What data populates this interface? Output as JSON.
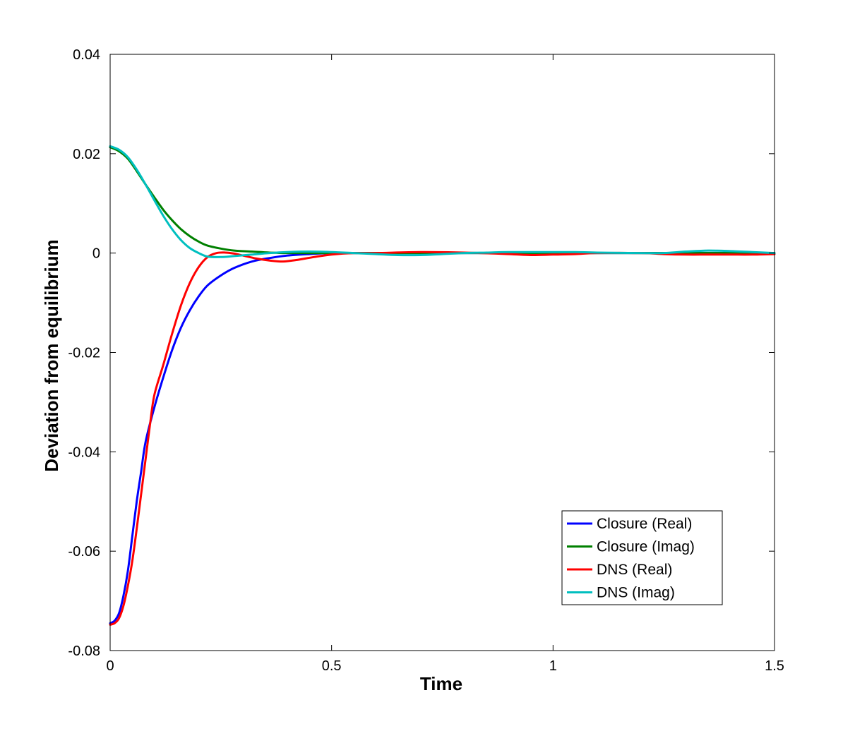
{
  "chart_data": {
    "type": "line",
    "title": "",
    "xlabel": "Time",
    "ylabel": "Deviation from equilibrium",
    "xlim": [
      0,
      1.5
    ],
    "ylim": [
      -0.08,
      0.04
    ],
    "xticks": [
      0,
      0.5,
      1,
      1.5
    ],
    "xtick_labels": [
      "0",
      "0.5",
      "1",
      "1.5"
    ],
    "yticks": [
      -0.08,
      -0.06,
      -0.04,
      -0.02,
      0,
      0.02,
      0.04
    ],
    "ytick_labels": [
      "-0.08",
      "-0.06",
      "-0.04",
      "-0.02",
      "0",
      "0.02",
      "0.04"
    ],
    "grid": false,
    "legend_position": "bottom-right",
    "series": [
      {
        "name": "Closure (Real)",
        "color": "#0000ff",
        "points": [
          [
            0,
            -0.0745
          ],
          [
            0.01,
            -0.074
          ],
          [
            0.02,
            -0.0725
          ],
          [
            0.03,
            -0.069
          ],
          [
            0.04,
            -0.064
          ],
          [
            0.05,
            -0.057
          ],
          [
            0.06,
            -0.05
          ],
          [
            0.07,
            -0.044
          ],
          [
            0.08,
            -0.038
          ],
          [
            0.1,
            -0.031
          ],
          [
            0.12,
            -0.025
          ],
          [
            0.14,
            -0.0195
          ],
          [
            0.16,
            -0.015
          ],
          [
            0.18,
            -0.0115
          ],
          [
            0.2,
            -0.0087
          ],
          [
            0.22,
            -0.0065
          ],
          [
            0.25,
            -0.0045
          ],
          [
            0.28,
            -0.003
          ],
          [
            0.32,
            -0.0017
          ],
          [
            0.36,
            -0.001
          ],
          [
            0.4,
            -0.0005
          ],
          [
            0.45,
            -0.0002
          ],
          [
            0.5,
            0
          ],
          [
            0.6,
            0
          ],
          [
            0.8,
            0
          ],
          [
            1.0,
            0
          ],
          [
            1.2,
            0
          ],
          [
            1.4,
            0
          ],
          [
            1.5,
            0
          ]
        ]
      },
      {
        "name": "Closure (Imag)",
        "color": "#008000",
        "points": [
          [
            0,
            0.0213
          ],
          [
            0.02,
            0.0205
          ],
          [
            0.04,
            0.019
          ],
          [
            0.06,
            0.0165
          ],
          [
            0.08,
            0.0138
          ],
          [
            0.1,
            0.0112
          ],
          [
            0.12,
            0.0087
          ],
          [
            0.14,
            0.0066
          ],
          [
            0.16,
            0.0048
          ],
          [
            0.18,
            0.0034
          ],
          [
            0.2,
            0.0023
          ],
          [
            0.22,
            0.0015
          ],
          [
            0.25,
            0.0009
          ],
          [
            0.28,
            0.0005
          ],
          [
            0.32,
            0.0003
          ],
          [
            0.36,
            0.0001
          ],
          [
            0.4,
            0
          ],
          [
            0.5,
            0
          ],
          [
            0.6,
            0
          ],
          [
            0.8,
            0
          ],
          [
            1.0,
            0
          ],
          [
            1.2,
            0
          ],
          [
            1.4,
            0
          ],
          [
            1.5,
            0
          ]
        ]
      },
      {
        "name": "DNS (Real)",
        "color": "#ff0000",
        "points": [
          [
            0,
            -0.0748
          ],
          [
            0.01,
            -0.0745
          ],
          [
            0.02,
            -0.0735
          ],
          [
            0.03,
            -0.071
          ],
          [
            0.04,
            -0.067
          ],
          [
            0.05,
            -0.062
          ],
          [
            0.06,
            -0.0555
          ],
          [
            0.07,
            -0.0485
          ],
          [
            0.08,
            -0.0415
          ],
          [
            0.09,
            -0.0345
          ],
          [
            0.1,
            -0.0285
          ],
          [
            0.12,
            -0.0225
          ],
          [
            0.14,
            -0.0162
          ],
          [
            0.16,
            -0.0105
          ],
          [
            0.18,
            -0.006
          ],
          [
            0.2,
            -0.0028
          ],
          [
            0.22,
            -0.0008
          ],
          [
            0.24,
            0
          ],
          [
            0.26,
            0.0001
          ],
          [
            0.28,
            -0.0001
          ],
          [
            0.3,
            -0.0005
          ],
          [
            0.33,
            -0.0011
          ],
          [
            0.36,
            -0.0015
          ],
          [
            0.39,
            -0.0017
          ],
          [
            0.42,
            -0.0014
          ],
          [
            0.46,
            -0.0008
          ],
          [
            0.5,
            -0.0003
          ],
          [
            0.55,
            0
          ],
          [
            0.6,
            0
          ],
          [
            0.7,
            0.0002
          ],
          [
            0.8,
            0.0001
          ],
          [
            0.9,
            -0.0002
          ],
          [
            0.95,
            -0.0004
          ],
          [
            1.0,
            -0.0003
          ],
          [
            1.05,
            -0.0002
          ],
          [
            1.1,
            0
          ],
          [
            1.2,
            0
          ],
          [
            1.25,
            -0.0002
          ],
          [
            1.3,
            -0.0003
          ],
          [
            1.35,
            -0.0003
          ],
          [
            1.4,
            -0.0003
          ],
          [
            1.45,
            -0.0003
          ],
          [
            1.5,
            -0.0002
          ]
        ]
      },
      {
        "name": "DNS (Imag)",
        "color": "#00bfbf",
        "points": [
          [
            0,
            0.0215
          ],
          [
            0.02,
            0.0208
          ],
          [
            0.04,
            0.0193
          ],
          [
            0.06,
            0.0168
          ],
          [
            0.08,
            0.0138
          ],
          [
            0.1,
            0.0106
          ],
          [
            0.12,
            0.0075
          ],
          [
            0.14,
            0.0048
          ],
          [
            0.16,
            0.0026
          ],
          [
            0.18,
            0.001
          ],
          [
            0.2,
            0
          ],
          [
            0.22,
            -0.0007
          ],
          [
            0.25,
            -0.0008
          ],
          [
            0.28,
            -0.0006
          ],
          [
            0.32,
            -0.0003
          ],
          [
            0.36,
            0
          ],
          [
            0.4,
            0.0002
          ],
          [
            0.45,
            0.0003
          ],
          [
            0.5,
            0.0002
          ],
          [
            0.55,
            0
          ],
          [
            0.6,
            -0.0002
          ],
          [
            0.65,
            -0.0004
          ],
          [
            0.7,
            -0.0004
          ],
          [
            0.75,
            -0.0002
          ],
          [
            0.8,
            0
          ],
          [
            0.85,
            0.0001
          ],
          [
            0.9,
            0.0002
          ],
          [
            1.0,
            0.0002
          ],
          [
            1.05,
            0.0002
          ],
          [
            1.1,
            0.0001
          ],
          [
            1.2,
            0
          ],
          [
            1.25,
            0
          ],
          [
            1.3,
            0.0003
          ],
          [
            1.35,
            0.0005
          ],
          [
            1.4,
            0.0004
          ],
          [
            1.45,
            0.0002
          ],
          [
            1.5,
            0
          ]
        ]
      }
    ]
  }
}
